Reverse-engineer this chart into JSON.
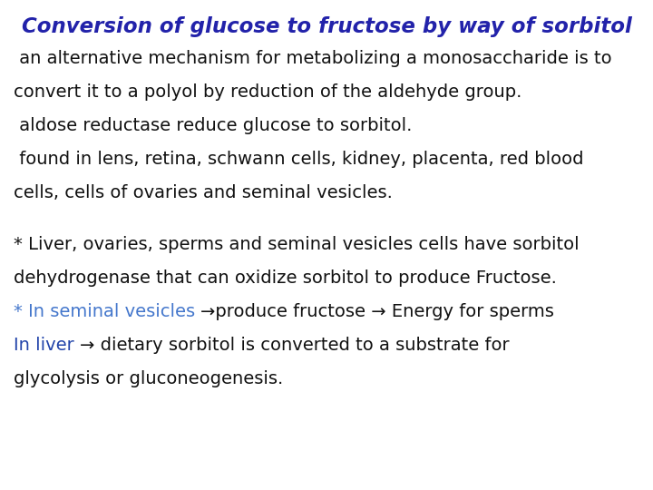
{
  "background_color": "#ffffff",
  "title": "Conversion of glucose to fructose by way of sorbitol",
  "title_color": "#2222aa",
  "title_fontsize": 16.5,
  "body_fontsize": 14.0,
  "body_color": "#111111",
  "seminal_color": "#4477cc",
  "liver_color": "#2244aa",
  "font_family": "DejaVu Sans",
  "lines_section1": [
    " an alternative mechanism for metabolizing a monosaccharide is to",
    "convert it to a polyol by reduction of the aldehyde group.",
    " aldose reductase reduce glucose to sorbitol.",
    " found in lens, retina, schwann cells, kidney, placenta, red blood",
    "cells, cells of ovaries and seminal vesicles."
  ],
  "lines_section2": [
    "* Liver, ovaries, sperms and seminal vesicles cells have sorbitol",
    "dehydrogenase that can oxidize sorbitol to produce Fructose."
  ],
  "mixed_line1": [
    {
      "text": "* In seminal vesicles ",
      "color": "#4477cc"
    },
    {
      "text": "→produce fructose → Energy for sperms",
      "color": "#111111"
    }
  ],
  "mixed_line2": [
    {
      "text": "In liver ",
      "color": "#2244aa"
    },
    {
      "text": "→ dietary sorbitol is converted to a substrate for",
      "color": "#111111"
    }
  ],
  "last_line": "glycolysis or gluconeogenesis."
}
